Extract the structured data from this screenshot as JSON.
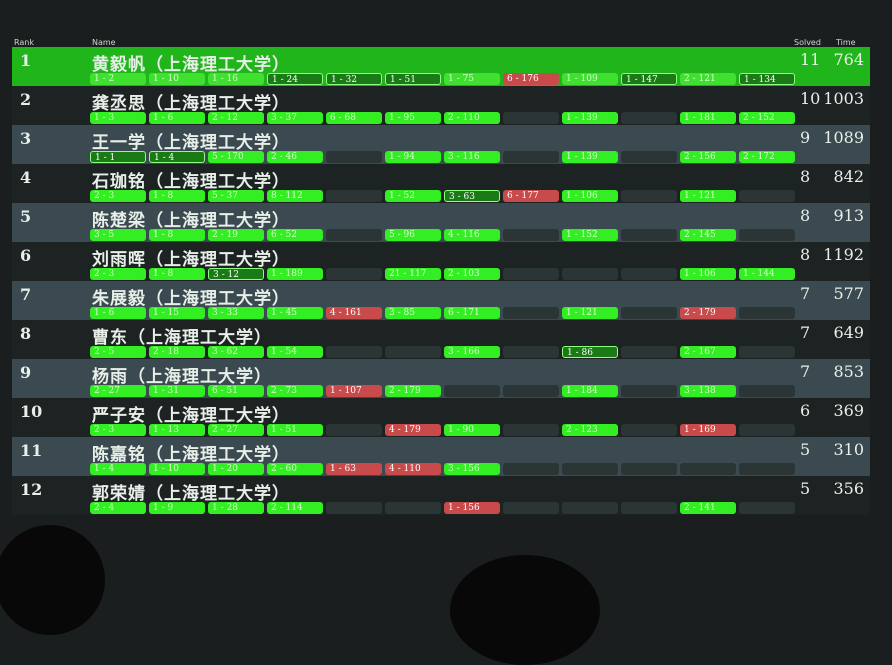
{
  "headers": {
    "rank": "Rank",
    "name": "Name",
    "solved": "Solved",
    "time": "Time"
  },
  "rows": [
    {
      "rank": "1",
      "name": "黄毅帆（上海理工大学）",
      "solved": "11",
      "time": "764",
      "cells": [
        [
          "s",
          "1 - 2"
        ],
        [
          "s",
          "1 - 10"
        ],
        [
          "s",
          "1 - 16"
        ],
        [
          "f",
          "1 - 24"
        ],
        [
          "f",
          "1 - 32"
        ],
        [
          "f",
          "1 - 51"
        ],
        [
          "s",
          "1 - 75"
        ],
        [
          "r",
          "6 - 176"
        ],
        [
          "s",
          "1 - 109"
        ],
        [
          "f",
          "1 - 147"
        ],
        [
          "s",
          "2 - 121"
        ],
        [
          "f",
          "1 - 134"
        ]
      ]
    },
    {
      "rank": "2",
      "name": "龚丞思（上海理工大学）",
      "solved": "10",
      "time": "1003",
      "cells": [
        [
          "s",
          "1 - 3"
        ],
        [
          "s",
          "1 - 6"
        ],
        [
          "s",
          "2 - 12"
        ],
        [
          "s",
          "3 - 37"
        ],
        [
          "s",
          "6 - 68"
        ],
        [
          "s",
          "1 - 95"
        ],
        [
          "s",
          "2 - 110"
        ],
        [
          "e",
          ""
        ],
        [
          "s",
          "1 - 139"
        ],
        [
          "e",
          ""
        ],
        [
          "s",
          "1 - 181"
        ],
        [
          "s",
          "2 - 152"
        ]
      ]
    },
    {
      "rank": "3",
      "name": "王一学（上海理工大学）",
      "solved": "9",
      "time": "1089",
      "cells": [
        [
          "f",
          "1 - 1"
        ],
        [
          "f",
          "1 - 4"
        ],
        [
          "s",
          "5 - 170"
        ],
        [
          "s",
          "2 - 46"
        ],
        [
          "e",
          ""
        ],
        [
          "s",
          "1 - 94"
        ],
        [
          "s",
          "3 - 116"
        ],
        [
          "e",
          ""
        ],
        [
          "s",
          "1 - 139"
        ],
        [
          "e",
          ""
        ],
        [
          "s",
          "2 - 156"
        ],
        [
          "s",
          "2 - 172"
        ]
      ]
    },
    {
      "rank": "4",
      "name": "石珈铭（上海理工大学）",
      "solved": "8",
      "time": "842",
      "cells": [
        [
          "s",
          "2 - 3"
        ],
        [
          "s",
          "1 - 8"
        ],
        [
          "s",
          "5 - 37"
        ],
        [
          "s",
          "8 - 112"
        ],
        [
          "e",
          ""
        ],
        [
          "s",
          "1 - 52"
        ],
        [
          "f",
          "3 - 63"
        ],
        [
          "r",
          "6 - 177"
        ],
        [
          "s",
          "1 - 106"
        ],
        [
          "e",
          ""
        ],
        [
          "s",
          "1 - 121"
        ],
        [
          "e",
          ""
        ]
      ]
    },
    {
      "rank": "5",
      "name": "陈楚梁（上海理工大学）",
      "solved": "8",
      "time": "913",
      "cells": [
        [
          "s",
          "3 - 5"
        ],
        [
          "s",
          "1 - 8"
        ],
        [
          "s",
          "2 - 19"
        ],
        [
          "s",
          "6 - 52"
        ],
        [
          "e",
          ""
        ],
        [
          "s",
          "5 - 96"
        ],
        [
          "s",
          "4 - 116"
        ],
        [
          "e",
          ""
        ],
        [
          "s",
          "1 - 152"
        ],
        [
          "e",
          ""
        ],
        [
          "s",
          "2 - 145"
        ],
        [
          "e",
          ""
        ]
      ]
    },
    {
      "rank": "6",
      "name": "刘雨晖（上海理工大学）",
      "solved": "8",
      "time": "1192",
      "cells": [
        [
          "s",
          "2 - 3"
        ],
        [
          "s",
          "1 - 8"
        ],
        [
          "f",
          "3 - 12"
        ],
        [
          "s",
          "1 - 189"
        ],
        [
          "e",
          ""
        ],
        [
          "s",
          "21 - 117"
        ],
        [
          "s",
          "2 - 103"
        ],
        [
          "e",
          ""
        ],
        [
          "e",
          ""
        ],
        [
          "e",
          ""
        ],
        [
          "s",
          "1 - 106"
        ],
        [
          "s",
          "1 - 144"
        ]
      ]
    },
    {
      "rank": "7",
      "name": "朱展毅（上海理工大学）",
      "solved": "7",
      "time": "577",
      "cells": [
        [
          "s",
          "1 - 6"
        ],
        [
          "s",
          "1 - 15"
        ],
        [
          "s",
          "3 - 33"
        ],
        [
          "s",
          "1 - 45"
        ],
        [
          "r",
          "4 - 161"
        ],
        [
          "s",
          "3 - 85"
        ],
        [
          "s",
          "6 - 171"
        ],
        [
          "e",
          ""
        ],
        [
          "s",
          "1 - 121"
        ],
        [
          "e",
          ""
        ],
        [
          "r",
          "2 - 179"
        ],
        [
          "e",
          ""
        ]
      ]
    },
    {
      "rank": "8",
      "name": "曹东（上海理工大学）",
      "solved": "7",
      "time": "649",
      "cells": [
        [
          "s",
          "2 - 5"
        ],
        [
          "s",
          "2 - 18"
        ],
        [
          "s",
          "3 - 62"
        ],
        [
          "s",
          "1 - 54"
        ],
        [
          "e",
          ""
        ],
        [
          "e",
          ""
        ],
        [
          "s",
          "3 - 166"
        ],
        [
          "e",
          ""
        ],
        [
          "f",
          "1 - 86"
        ],
        [
          "e",
          ""
        ],
        [
          "s",
          "2 - 167"
        ],
        [
          "e",
          ""
        ]
      ]
    },
    {
      "rank": "9",
      "name": "杨雨（上海理工大学）",
      "solved": "7",
      "time": "853",
      "cells": [
        [
          "s",
          "2 - 27"
        ],
        [
          "s",
          "1 - 31"
        ],
        [
          "s",
          "6 - 51"
        ],
        [
          "s",
          "2 - 73"
        ],
        [
          "r",
          "1 - 107"
        ],
        [
          "s",
          "2 - 179"
        ],
        [
          "e",
          ""
        ],
        [
          "e",
          ""
        ],
        [
          "s",
          "1 - 184"
        ],
        [
          "e",
          ""
        ],
        [
          "s",
          "3 - 138"
        ],
        [
          "e",
          ""
        ]
      ]
    },
    {
      "rank": "10",
      "name": "严子安（上海理工大学）",
      "solved": "6",
      "time": "369",
      "cells": [
        [
          "s",
          "2 - 3"
        ],
        [
          "s",
          "1 - 13"
        ],
        [
          "s",
          "2 - 27"
        ],
        [
          "s",
          "1 - 51"
        ],
        [
          "e",
          ""
        ],
        [
          "r",
          "4 - 179"
        ],
        [
          "s",
          "1 - 90"
        ],
        [
          "e",
          ""
        ],
        [
          "s",
          "2 - 123"
        ],
        [
          "e",
          ""
        ],
        [
          "r",
          "1 - 169"
        ],
        [
          "e",
          ""
        ]
      ]
    },
    {
      "rank": "11",
      "name": "陈嘉铭（上海理工大学）",
      "solved": "5",
      "time": "310",
      "cells": [
        [
          "s",
          "1 - 4"
        ],
        [
          "s",
          "1 - 10"
        ],
        [
          "s",
          "1 - 20"
        ],
        [
          "s",
          "2 - 60"
        ],
        [
          "r",
          "1 - 63"
        ],
        [
          "r",
          "4 - 110"
        ],
        [
          "s",
          "3 - 156"
        ],
        [
          "e",
          ""
        ],
        [
          "e",
          ""
        ],
        [
          "e",
          ""
        ],
        [
          "e",
          ""
        ],
        [
          "e",
          ""
        ]
      ]
    },
    {
      "rank": "12",
      "name": "郭荣婧（上海理工大学）",
      "solved": "5",
      "time": "356",
      "cells": [
        [
          "s",
          "2 - 4"
        ],
        [
          "s",
          "1 - 9"
        ],
        [
          "s",
          "1 - 28"
        ],
        [
          "s",
          "2 - 114"
        ],
        [
          "e",
          ""
        ],
        [
          "e",
          ""
        ],
        [
          "r",
          "1 - 156"
        ],
        [
          "e",
          ""
        ],
        [
          "e",
          ""
        ],
        [
          "e",
          ""
        ],
        [
          "s",
          "2 - 141"
        ],
        [
          "e",
          ""
        ]
      ]
    }
  ],
  "colors": {
    "leader_row": "#21b51c",
    "solved": "#33ee22",
    "first_solve": "#1a7a16",
    "failed": "#c94a4a",
    "empty": "#2c3536"
  }
}
